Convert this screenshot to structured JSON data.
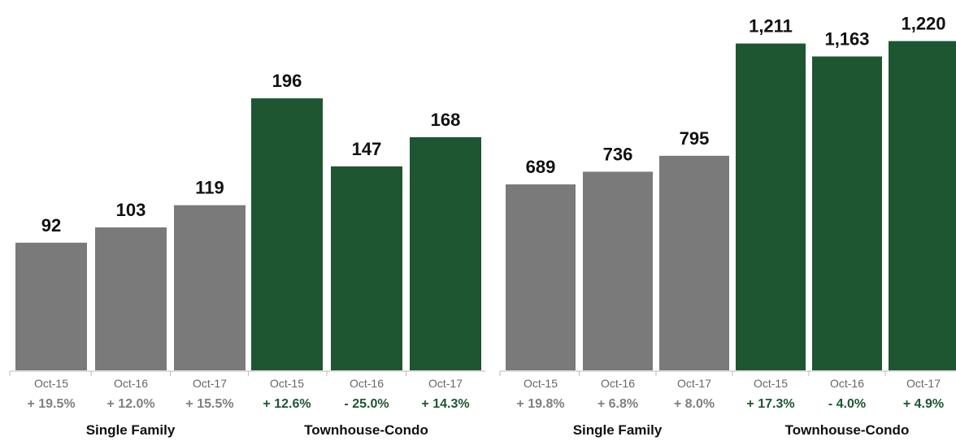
{
  "colors": {
    "single_family": "#7a7a7a",
    "townhouse_condo": "#1e5631",
    "change_single_family": "#808080",
    "change_townhouse_condo": "#1e5631",
    "baseline": "#bbbbbb"
  },
  "chart_data": [
    {
      "type": "bar",
      "title": "",
      "ylim": [
        0,
        230
      ],
      "groups": [
        {
          "name": "Single Family",
          "color_key": "single_family",
          "categories": [
            "Oct-15",
            "Oct-16",
            "Oct-17"
          ],
          "values": [
            92,
            103,
            119
          ],
          "value_labels": [
            "92",
            "103",
            "119"
          ],
          "changes": [
            "+ 19.5%",
            "+ 12.0%",
            "+ 15.5%"
          ]
        },
        {
          "name": "Townhouse-Condo",
          "color_key": "townhouse_condo",
          "categories": [
            "Oct-15",
            "Oct-16",
            "Oct-17"
          ],
          "values": [
            196,
            147,
            168
          ],
          "value_labels": [
            "196",
            "147",
            "168"
          ],
          "changes": [
            "+ 12.6%",
            "- 25.0%",
            "+ 14.3%"
          ]
        }
      ]
    },
    {
      "type": "bar",
      "title": "",
      "ylim": [
        0,
        1300
      ],
      "groups": [
        {
          "name": "Single Family",
          "color_key": "single_family",
          "categories": [
            "Oct-15",
            "Oct-16",
            "Oct-17"
          ],
          "values": [
            689,
            736,
            795
          ],
          "value_labels": [
            "689",
            "736",
            "795"
          ],
          "changes": [
            "+ 19.8%",
            "+ 6.8%",
            "+ 8.0%"
          ]
        },
        {
          "name": "Townhouse-Condo",
          "color_key": "townhouse_condo",
          "categories": [
            "Oct-15",
            "Oct-16",
            "Oct-17"
          ],
          "values": [
            1211,
            1163,
            1220
          ],
          "value_labels": [
            "1,211",
            "1,163",
            "1,220"
          ],
          "changes": [
            "+ 17.3%",
            "- 4.0%",
            "+ 4.9%"
          ]
        }
      ]
    }
  ]
}
